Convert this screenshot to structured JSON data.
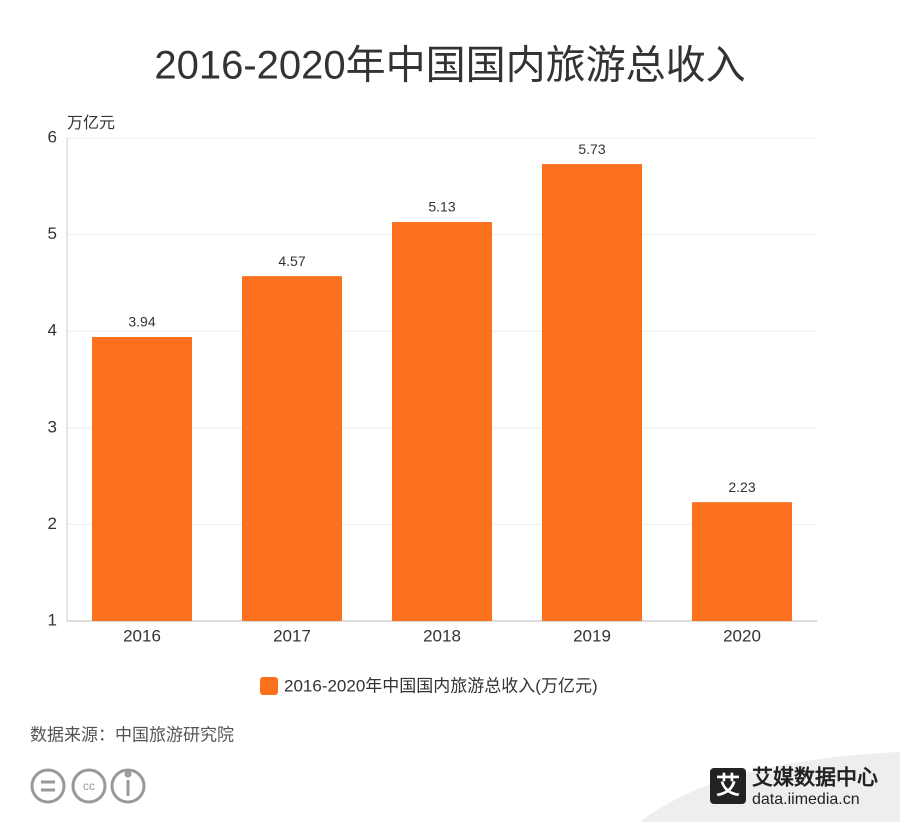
{
  "chart_data": {
    "type": "bar",
    "title": "2016-2020年中国国内旅游总收入",
    "y_axis_label": "万亿元",
    "categories": [
      "2016",
      "2017",
      "2018",
      "2019",
      "2020"
    ],
    "series": [
      {
        "name": "2016-2020年中国国内旅游总收入(万亿元)",
        "color": "#fc711d",
        "values": [
          3.94,
          4.57,
          5.13,
          5.73,
          2.23
        ]
      }
    ],
    "ylim": [
      1,
      6
    ],
    "yticks": [
      1,
      2,
      3,
      4,
      5,
      6
    ],
    "grid": true
  },
  "source": "数据来源：中国旅游研究院",
  "footer": {
    "brand": "艾媒数据中心",
    "url": "data.iimedia.cn",
    "logo": "艾"
  }
}
